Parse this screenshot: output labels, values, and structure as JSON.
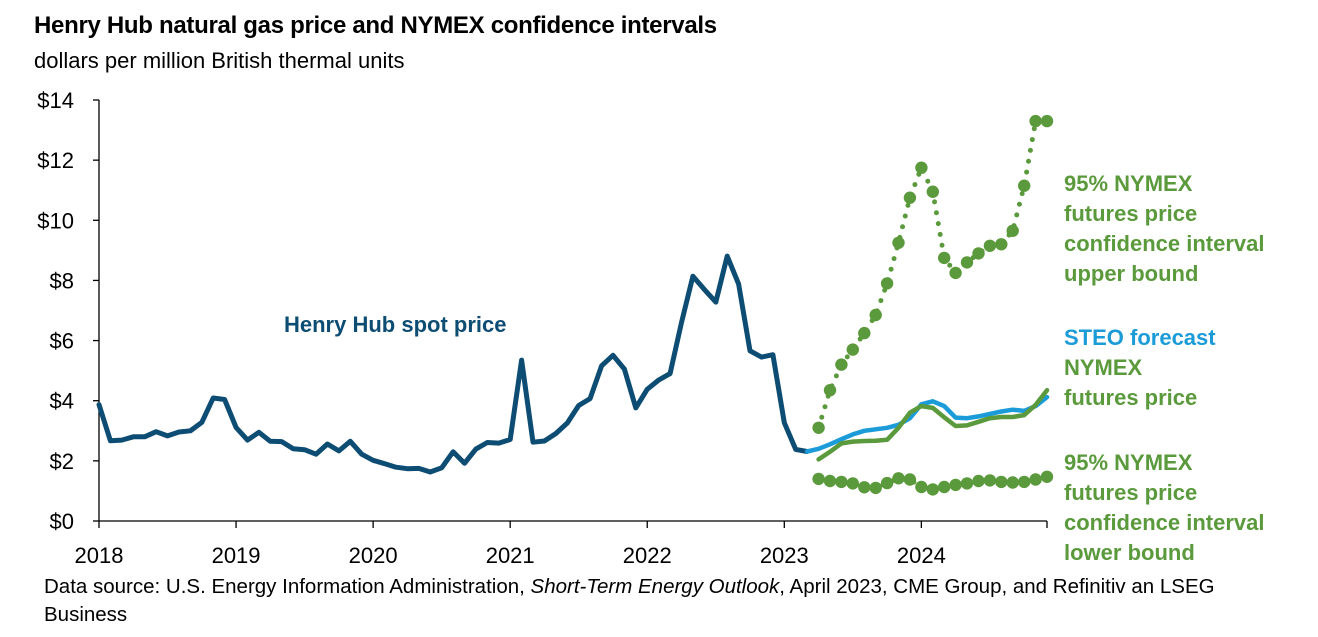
{
  "title": "Henry Hub natural gas price and NYMEX  confidence intervals",
  "subtitle": "dollars per million British thermal units",
  "source": {
    "prefix": "Data source: U.S. Energy Information Administration, ",
    "italic": "Short-Term Energy Outlook",
    "suffix": ", April 2023, CME Group, and Refinitiv an LSEG Business"
  },
  "colors": {
    "spot": "#0e4d73",
    "steo": "#1b9bd8",
    "nymex": "#5b9a3c",
    "axis": "#000000"
  },
  "chart_data": {
    "type": "line",
    "title": "Henry Hub natural gas price and NYMEX  confidence intervals",
    "ylabel": "dollars per million British thermal units",
    "x_ticks": [
      "2018",
      "2019",
      "2020",
      "2021",
      "2022",
      "2023",
      "2024"
    ],
    "y_ticks": [
      "$0",
      "$2",
      "$4",
      "$6",
      "$8",
      "$10",
      "$12",
      "$14"
    ],
    "ylim": [
      0,
      14
    ],
    "xlim": [
      "2018-01",
      "2024-12"
    ],
    "grid": false,
    "series": [
      {
        "name": "Henry Hub spot price",
        "style": "solid",
        "color": "#0e4d73",
        "x": [
          "2018-01",
          "2018-02",
          "2018-03",
          "2018-04",
          "2018-05",
          "2018-06",
          "2018-07",
          "2018-08",
          "2018-09",
          "2018-10",
          "2018-11",
          "2018-12",
          "2019-01",
          "2019-02",
          "2019-03",
          "2019-04",
          "2019-05",
          "2019-06",
          "2019-07",
          "2019-08",
          "2019-09",
          "2019-10",
          "2019-11",
          "2019-12",
          "2020-01",
          "2020-02",
          "2020-03",
          "2020-04",
          "2020-05",
          "2020-06",
          "2020-07",
          "2020-08",
          "2020-09",
          "2020-10",
          "2020-11",
          "2020-12",
          "2021-01",
          "2021-02",
          "2021-03",
          "2021-04",
          "2021-05",
          "2021-06",
          "2021-07",
          "2021-08",
          "2021-09",
          "2021-10",
          "2021-11",
          "2021-12",
          "2022-01",
          "2022-02",
          "2022-03",
          "2022-04",
          "2022-05",
          "2022-06",
          "2022-07",
          "2022-08",
          "2022-09",
          "2022-10",
          "2022-11",
          "2022-12",
          "2023-01",
          "2023-02",
          "2023-03"
        ],
        "values": [
          3.87,
          2.67,
          2.69,
          2.8,
          2.8,
          2.97,
          2.83,
          2.96,
          3.0,
          3.28,
          4.09,
          4.04,
          3.11,
          2.69,
          2.95,
          2.65,
          2.64,
          2.4,
          2.37,
          2.22,
          2.56,
          2.33,
          2.65,
          2.22,
          2.02,
          1.91,
          1.79,
          1.74,
          1.75,
          1.63,
          1.77,
          2.3,
          1.92,
          2.39,
          2.61,
          2.59,
          2.71,
          5.35,
          2.62,
          2.66,
          2.91,
          3.26,
          3.84,
          4.07,
          5.16,
          5.51,
          5.05,
          3.76,
          4.38,
          4.69,
          4.9,
          6.6,
          8.14,
          7.7,
          7.28,
          8.81,
          7.88,
          5.66,
          5.45,
          5.53,
          3.27,
          2.38,
          2.31
        ]
      },
      {
        "name": "STEO forecast",
        "style": "solid",
        "color": "#1b9bd8",
        "x": [
          "2023-03",
          "2023-04",
          "2023-05",
          "2023-06",
          "2023-07",
          "2023-08",
          "2023-09",
          "2023-10",
          "2023-11",
          "2023-12",
          "2024-01",
          "2024-02",
          "2024-03",
          "2024-04",
          "2024-05",
          "2024-06",
          "2024-07",
          "2024-08",
          "2024-09",
          "2024-10",
          "2024-11",
          "2024-12"
        ],
        "values": [
          2.31,
          2.4,
          2.55,
          2.72,
          2.88,
          3.0,
          3.05,
          3.1,
          3.2,
          3.42,
          3.88,
          3.98,
          3.82,
          3.44,
          3.42,
          3.48,
          3.56,
          3.64,
          3.7,
          3.66,
          3.82,
          4.12
        ]
      },
      {
        "name": "NYMEX futures price",
        "style": "solid",
        "color": "#5b9a3c",
        "x": [
          "2023-04",
          "2023-05",
          "2023-06",
          "2023-07",
          "2023-08",
          "2023-09",
          "2023-10",
          "2023-11",
          "2023-12",
          "2024-01",
          "2024-02",
          "2024-03",
          "2024-04",
          "2024-05",
          "2024-06",
          "2024-07",
          "2024-08",
          "2024-09",
          "2024-10",
          "2024-11",
          "2024-12"
        ],
        "values": [
          2.05,
          2.3,
          2.58,
          2.64,
          2.66,
          2.67,
          2.7,
          3.1,
          3.6,
          3.82,
          3.76,
          3.45,
          3.16,
          3.18,
          3.3,
          3.42,
          3.46,
          3.46,
          3.52,
          3.86,
          4.35
        ]
      },
      {
        "name": "95% NYMEX futures price confidence interval upper bound",
        "style": "dotted",
        "color": "#5b9a3c",
        "x": [
          "2023-04",
          "2023-05",
          "2023-06",
          "2023-07",
          "2023-08",
          "2023-09",
          "2023-10",
          "2023-11",
          "2023-12",
          "2024-01",
          "2024-02",
          "2024-03",
          "2024-04",
          "2024-05",
          "2024-06",
          "2024-07",
          "2024-08",
          "2024-09",
          "2024-10",
          "2024-11",
          "2024-12"
        ],
        "values": [
          3.1,
          4.35,
          5.2,
          5.7,
          6.25,
          6.85,
          7.9,
          9.25,
          10.75,
          11.75,
          10.95,
          8.75,
          8.25,
          8.6,
          8.9,
          9.15,
          9.2,
          9.65,
          11.15,
          13.3,
          13.3
        ]
      },
      {
        "name": "95% NYMEX futures price confidence interval lower bound",
        "style": "dotted",
        "color": "#5b9a3c",
        "x": [
          "2023-04",
          "2023-05",
          "2023-06",
          "2023-07",
          "2023-08",
          "2023-09",
          "2023-10",
          "2023-11",
          "2023-12",
          "2024-01",
          "2024-02",
          "2024-03",
          "2024-04",
          "2024-05",
          "2024-06",
          "2024-07",
          "2024-08",
          "2024-09",
          "2024-10",
          "2024-11",
          "2024-12"
        ],
        "values": [
          1.4,
          1.33,
          1.3,
          1.25,
          1.12,
          1.1,
          1.26,
          1.42,
          1.38,
          1.13,
          1.05,
          1.13,
          1.2,
          1.25,
          1.33,
          1.35,
          1.3,
          1.28,
          1.3,
          1.38,
          1.47
        ]
      }
    ],
    "annotations": {
      "spot": "Henry Hub spot price",
      "upper": [
        "95% NYMEX",
        "futures price",
        "confidence interval",
        "upper bound"
      ],
      "steo": "STEO forecast",
      "nymex": [
        "NYMEX",
        "futures price"
      ],
      "lower": [
        "95% NYMEX",
        "futures price",
        "confidence interval",
        "lower bound"
      ]
    }
  }
}
